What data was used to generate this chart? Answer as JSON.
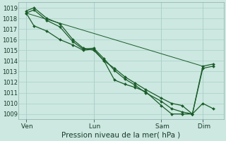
{
  "xlabel": "Pression niveau de la mer( hPa )",
  "background_color": "#cce8e0",
  "grid_color": "#aacfc8",
  "line_color": "#1a5c2a",
  "ylim": [
    1008.5,
    1019.5
  ],
  "yticks": [
    1009,
    1010,
    1011,
    1012,
    1013,
    1014,
    1015,
    1016,
    1017,
    1018,
    1019
  ],
  "xtick_labels": [
    " Ven",
    " Lun",
    " Sam",
    " Dim"
  ],
  "xtick_positions": [
    0,
    26,
    52,
    68
  ],
  "xlim": [
    -3,
    76
  ],
  "series1_x": [
    0,
    3,
    8,
    13,
    18,
    22,
    26,
    30,
    34,
    38,
    42,
    46,
    52,
    56,
    60,
    64,
    68,
    72
  ],
  "series1_y": [
    1018.7,
    1019.0,
    1018.0,
    1017.5,
    1016.0,
    1015.2,
    1015.0,
    1014.0,
    1013.3,
    1012.5,
    1011.9,
    1011.3,
    1010.5,
    1010.0,
    1009.8,
    1009.0,
    1013.3,
    1013.5
  ],
  "series2_x": [
    0,
    3,
    8,
    13,
    18,
    22,
    26,
    30,
    34,
    38,
    42,
    46,
    52,
    56,
    60,
    64,
    68,
    72
  ],
  "series2_y": [
    1018.5,
    1018.8,
    1017.8,
    1017.2,
    1015.8,
    1015.1,
    1015.2,
    1014.2,
    1013.1,
    1012.3,
    1011.7,
    1011.0,
    1010.2,
    1009.5,
    1009.2,
    1009.0,
    1013.5,
    1013.7
  ],
  "series3_x": [
    0,
    3,
    8,
    13,
    18,
    22,
    26,
    30,
    34,
    38,
    42,
    46,
    52,
    56,
    60,
    64,
    68,
    72
  ],
  "series3_y": [
    1018.5,
    1017.3,
    1016.8,
    1016.0,
    1015.5,
    1015.0,
    1015.1,
    1014.0,
    1012.2,
    1011.8,
    1011.5,
    1011.1,
    1009.8,
    1009.0,
    1009.0,
    1009.0,
    1010.0,
    1009.5
  ],
  "series4_x": [
    0,
    68
  ],
  "series4_y": [
    1018.5,
    1013.5
  ],
  "vline_positions": [
    0,
    26,
    52,
    68
  ]
}
